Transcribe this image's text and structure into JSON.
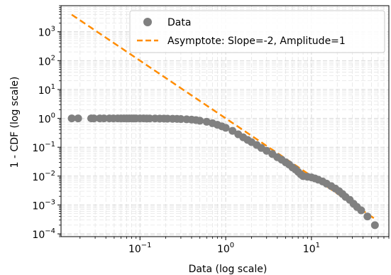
{
  "chart_data": {
    "type": "scatter",
    "xlabel": "Data (log scale)",
    "ylabel": "1 - CDF (log scale)",
    "xscale": "log",
    "yscale": "log",
    "xlim": [
      0.012,
      80
    ],
    "ylim": [
      8e-05,
      8000
    ],
    "xticks": [
      0.1,
      1,
      10
    ],
    "xtick_labels": [
      [
        "10",
        "−1"
      ],
      [
        "10",
        "0"
      ],
      [
        "10",
        "1"
      ]
    ],
    "yticks": [
      0.0001,
      0.001,
      0.01,
      0.1,
      1,
      10,
      100,
      1000
    ],
    "ytick_labels": [
      [
        "10",
        "−4"
      ],
      [
        "10",
        "−3"
      ],
      [
        "10",
        "−2"
      ],
      [
        "10",
        "−1"
      ],
      [
        "10",
        "0"
      ],
      [
        "10",
        "1"
      ],
      [
        "10",
        "2"
      ],
      [
        "10",
        "3"
      ]
    ],
    "grid": true,
    "legend_position": "upper right",
    "series": [
      {
        "name": "Data",
        "kind": "scatter",
        "color": "#808080",
        "points": [
          [
            0.016,
            1.0
          ],
          [
            0.019,
            1.0
          ],
          [
            0.027,
            1.0
          ],
          [
            0.029,
            1.0
          ],
          [
            0.034,
            1.0
          ],
          [
            0.038,
            1.0
          ],
          [
            0.044,
            1.0
          ],
          [
            0.049,
            1.0
          ],
          [
            0.055,
            1.0
          ],
          [
            0.06,
            1.0
          ],
          [
            0.065,
            1.0
          ],
          [
            0.07,
            1.0
          ],
          [
            0.075,
            1.0
          ],
          [
            0.08,
            1.0
          ],
          [
            0.085,
            1.0
          ],
          [
            0.09,
            1.0
          ],
          [
            0.1,
            1.0
          ],
          [
            0.11,
            1.0
          ],
          [
            0.12,
            0.99
          ],
          [
            0.13,
            0.99
          ],
          [
            0.15,
            0.99
          ],
          [
            0.17,
            0.985
          ],
          [
            0.19,
            0.98
          ],
          [
            0.21,
            0.975
          ],
          [
            0.24,
            0.97
          ],
          [
            0.27,
            0.96
          ],
          [
            0.3,
            0.95
          ],
          [
            0.35,
            0.93
          ],
          [
            0.4,
            0.9
          ],
          [
            0.45,
            0.87
          ],
          [
            0.5,
            0.83
          ],
          [
            0.6,
            0.76
          ],
          [
            0.7,
            0.68
          ],
          [
            0.8,
            0.6
          ],
          [
            0.9,
            0.53
          ],
          [
            1.0,
            0.47
          ],
          [
            1.2,
            0.37
          ],
          [
            1.4,
            0.28
          ],
          [
            1.6,
            0.22
          ],
          [
            1.8,
            0.18
          ],
          [
            2.0,
            0.15
          ],
          [
            2.3,
            0.12
          ],
          [
            2.6,
            0.095
          ],
          [
            3.0,
            0.075
          ],
          [
            3.5,
            0.058
          ],
          [
            4.0,
            0.045
          ],
          [
            4.5,
            0.037
          ],
          [
            5.0,
            0.03
          ],
          [
            5.5,
            0.025
          ],
          [
            6.0,
            0.02
          ],
          [
            6.5,
            0.017
          ],
          [
            7.0,
            0.014
          ],
          [
            7.5,
            0.0115
          ],
          [
            8.0,
            0.01
          ],
          [
            9.0,
            0.0095
          ],
          [
            10.0,
            0.009
          ],
          [
            11.0,
            0.0083
          ],
          [
            12.0,
            0.0075
          ],
          [
            13.5,
            0.0065
          ],
          [
            15.0,
            0.0055
          ],
          [
            17.0,
            0.0045
          ],
          [
            19.0,
            0.0037
          ],
          [
            21.0,
            0.003
          ],
          [
            23.0,
            0.0024
          ],
          [
            25.0,
            0.0019
          ],
          [
            28.0,
            0.0015
          ],
          [
            31.0,
            0.0011
          ],
          [
            34.0,
            0.00085
          ],
          [
            38.0,
            0.00065
          ],
          [
            45.0,
            0.0004
          ],
          [
            55.0,
            0.0002
          ]
        ]
      },
      {
        "name": "Asymptote: Slope=-2, Amplitude=1",
        "kind": "line",
        "color": "#ff8c00",
        "dash": "dashed",
        "x": [
          0.016,
          55
        ],
        "y": [
          3906.25,
          0.000331
        ]
      }
    ]
  }
}
